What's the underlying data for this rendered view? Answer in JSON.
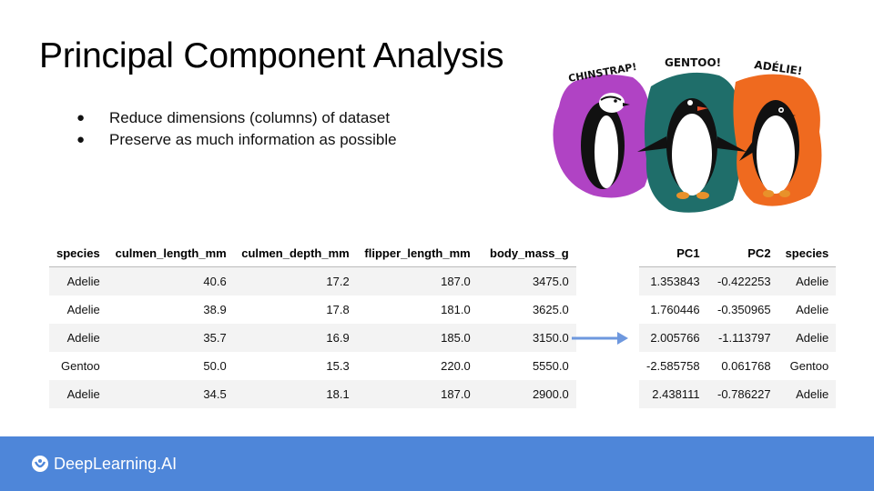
{
  "slide": {
    "title": "Principal Component Analysis",
    "bullets": [
      "Reduce dimensions (columns) of dataset",
      "Preserve as much information as possible"
    ]
  },
  "illustration": {
    "labels": [
      "CHINSTRAP!",
      "GENTOO!",
      "ADÉLIE!"
    ],
    "colors": {
      "chinstrap": "#b043c4",
      "gentoo": "#1f6e6a",
      "adelie": "#ef6a1f"
    }
  },
  "original_table": {
    "headers": [
      "species",
      "culmen_length_mm",
      "culmen_depth_mm",
      "flipper_length_mm",
      "body_mass_g"
    ],
    "rows": [
      [
        "Adelie",
        "40.6",
        "17.2",
        "187.0",
        "3475.0"
      ],
      [
        "Adelie",
        "38.9",
        "17.8",
        "181.0",
        "3625.0"
      ],
      [
        "Adelie",
        "35.7",
        "16.9",
        "185.0",
        "3150.0"
      ],
      [
        "Gentoo",
        "50.0",
        "15.3",
        "220.0",
        "5550.0"
      ],
      [
        "Adelie",
        "34.5",
        "18.1",
        "187.0",
        "2900.0"
      ]
    ]
  },
  "pca_table": {
    "headers": [
      "PC1",
      "PC2",
      "species"
    ],
    "rows": [
      [
        "1.353843",
        "-0.422253",
        "Adelie"
      ],
      [
        "1.760446",
        "-0.350965",
        "Adelie"
      ],
      [
        "2.005766",
        "-1.113797",
        "Adelie"
      ],
      [
        "-2.585758",
        "0.061768",
        "Gentoo"
      ],
      [
        "2.438111",
        "-0.786227",
        "Adelie"
      ]
    ]
  },
  "arrow_icon": "arrow-right-icon",
  "footer": {
    "brand": "DeepLearning.AI",
    "background": "#4e86d9"
  }
}
